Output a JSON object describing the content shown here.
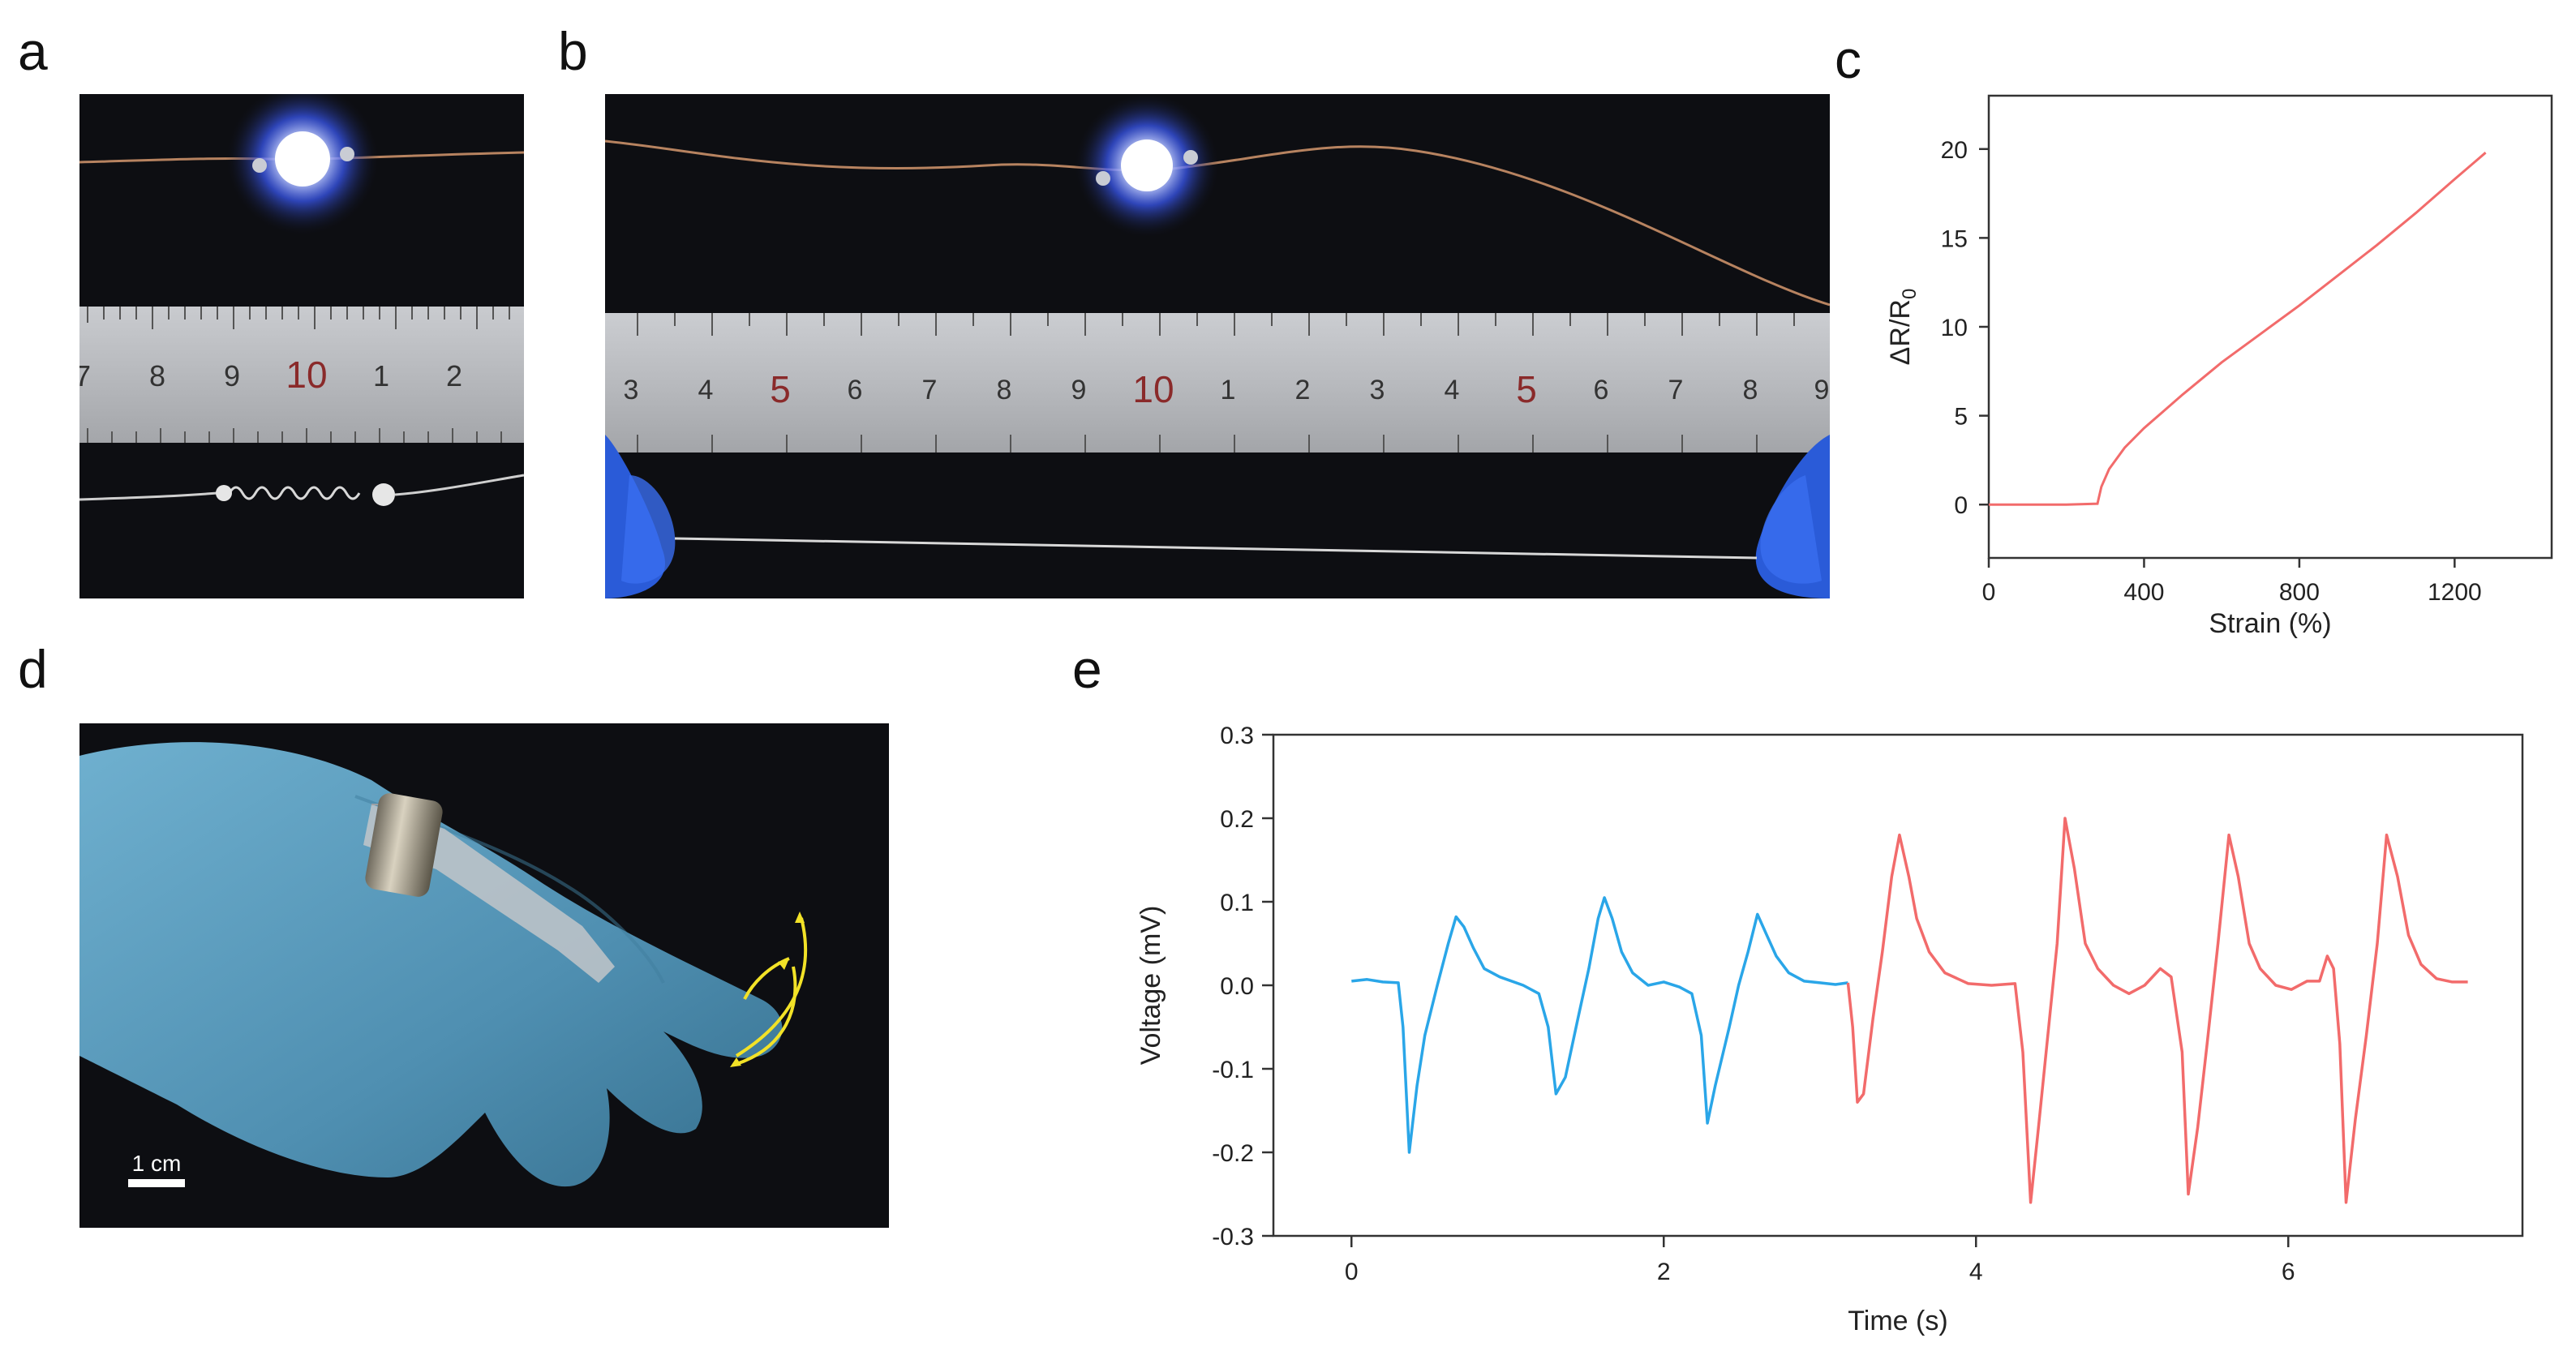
{
  "figure": {
    "panel_labels": {
      "a": "a",
      "b": "b",
      "c": "c",
      "d": "d",
      "e": "e"
    }
  },
  "photos": {
    "a": {
      "ruler_marks": [
        "7",
        "8",
        "9",
        "10",
        "1",
        "2"
      ]
    },
    "b": {
      "ruler_marks": [
        "3",
        "4",
        "5",
        "6",
        "7",
        "8",
        "9",
        "10",
        "1",
        "2",
        "3",
        "4",
        "5",
        "6",
        "7",
        "8",
        "9"
      ]
    },
    "d": {
      "scale_bar_label": "1 cm"
    }
  },
  "colors": {
    "series_red": "#f26b6b",
    "series_blue": "#2aa6e8",
    "led_blue": "#3c5cff",
    "glove": "#5e9fbf",
    "arrow_yellow": "#f2e227"
  },
  "chart_data": [
    {
      "panel": "c",
      "type": "line",
      "title": "",
      "xlabel": "Strain (%)",
      "ylabel": "ΔR/R",
      "ylabel_subscript": "0",
      "xlim": [
        0,
        1450
      ],
      "ylim": [
        -3,
        23
      ],
      "xticks": [
        0,
        400,
        800,
        1200
      ],
      "yticks": [
        0,
        5,
        10,
        15,
        20
      ],
      "grid": false,
      "series": [
        {
          "color": "#f26b6b",
          "points": [
            [
              0,
              0
            ],
            [
              100,
              0
            ],
            [
              200,
              0
            ],
            [
              280,
              0.05
            ],
            [
              290,
              1.0
            ],
            [
              310,
              2.0
            ],
            [
              350,
              3.2
            ],
            [
              400,
              4.3
            ],
            [
              500,
              6.2
            ],
            [
              600,
              8.0
            ],
            [
              700,
              9.6
            ],
            [
              800,
              11.2
            ],
            [
              900,
              12.9
            ],
            [
              1000,
              14.6
            ],
            [
              1100,
              16.4
            ],
            [
              1200,
              18.3
            ],
            [
              1280,
              19.8
            ]
          ]
        }
      ]
    },
    {
      "panel": "e",
      "type": "line",
      "title": "",
      "xlabel": "Time (s)",
      "ylabel": "Voltage (mV)",
      "xlim": [
        -0.5,
        7.5
      ],
      "ylim": [
        -0.3,
        0.3
      ],
      "xticks": [
        0,
        2,
        4,
        6
      ],
      "yticks": [
        -0.3,
        -0.2,
        -0.1,
        0.0,
        0.1,
        0.2,
        0.3
      ],
      "ytick_labels": [
        "-0.3",
        "-0.2",
        "-0.1",
        "0.0",
        "0.1",
        "0.2",
        "0.3"
      ],
      "grid": false,
      "series": [
        {
          "color": "#2aa6e8",
          "points": [
            [
              0,
              0.005
            ],
            [
              0.1,
              0.007
            ],
            [
              0.2,
              0.004
            ],
            [
              0.3,
              0.003
            ],
            [
              0.33,
              -0.05
            ],
            [
              0.37,
              -0.2
            ],
            [
              0.42,
              -0.12
            ],
            [
              0.47,
              -0.06
            ],
            [
              0.55,
              0.0
            ],
            [
              0.62,
              0.05
            ],
            [
              0.67,
              0.082
            ],
            [
              0.72,
              0.07
            ],
            [
              0.78,
              0.045
            ],
            [
              0.85,
              0.02
            ],
            [
              0.95,
              0.01
            ],
            [
              1.1,
              0.0
            ],
            [
              1.2,
              -0.01
            ],
            [
              1.26,
              -0.05
            ],
            [
              1.31,
              -0.13
            ],
            [
              1.37,
              -0.11
            ],
            [
              1.45,
              -0.04
            ],
            [
              1.52,
              0.02
            ],
            [
              1.58,
              0.08
            ],
            [
              1.62,
              0.105
            ],
            [
              1.67,
              0.08
            ],
            [
              1.73,
              0.04
            ],
            [
              1.8,
              0.015
            ],
            [
              1.9,
              0.0
            ],
            [
              2.0,
              0.004
            ],
            [
              2.1,
              -0.002
            ],
            [
              2.18,
              -0.01
            ],
            [
              2.24,
              -0.06
            ],
            [
              2.28,
              -0.165
            ],
            [
              2.33,
              -0.12
            ],
            [
              2.42,
              -0.05
            ],
            [
              2.48,
              0.0
            ],
            [
              2.54,
              0.04
            ],
            [
              2.6,
              0.085
            ],
            [
              2.66,
              0.06
            ],
            [
              2.72,
              0.035
            ],
            [
              2.8,
              0.015
            ],
            [
              2.9,
              0.005
            ],
            [
              3.0,
              0.003
            ],
            [
              3.1,
              0.001
            ],
            [
              3.18,
              0.003
            ]
          ]
        },
        {
          "color": "#f26b6b",
          "points": [
            [
              3.18,
              0.003
            ],
            [
              3.21,
              -0.05
            ],
            [
              3.24,
              -0.14
            ],
            [
              3.28,
              -0.13
            ],
            [
              3.34,
              -0.04
            ],
            [
              3.4,
              0.04
            ],
            [
              3.46,
              0.13
            ],
            [
              3.51,
              0.18
            ],
            [
              3.57,
              0.13
            ],
            [
              3.62,
              0.08
            ],
            [
              3.7,
              0.04
            ],
            [
              3.8,
              0.015
            ],
            [
              3.95,
              0.002
            ],
            [
              4.1,
              0.0
            ],
            [
              4.25,
              0.002
            ],
            [
              4.3,
              -0.08
            ],
            [
              4.35,
              -0.26
            ],
            [
              4.4,
              -0.17
            ],
            [
              4.46,
              -0.06
            ],
            [
              4.52,
              0.05
            ],
            [
              4.57,
              0.2
            ],
            [
              4.63,
              0.14
            ],
            [
              4.7,
              0.05
            ],
            [
              4.78,
              0.02
            ],
            [
              4.88,
              0.0
            ],
            [
              4.98,
              -0.01
            ],
            [
              5.08,
              0.0
            ],
            [
              5.18,
              0.02
            ],
            [
              5.25,
              0.01
            ],
            [
              5.32,
              -0.08
            ],
            [
              5.36,
              -0.25
            ],
            [
              5.42,
              -0.17
            ],
            [
              5.48,
              -0.07
            ],
            [
              5.55,
              0.05
            ],
            [
              5.62,
              0.18
            ],
            [
              5.68,
              0.13
            ],
            [
              5.75,
              0.05
            ],
            [
              5.82,
              0.02
            ],
            [
              5.92,
              0.0
            ],
            [
              6.02,
              -0.005
            ],
            [
              6.12,
              0.005
            ],
            [
              6.2,
              0.005
            ],
            [
              6.25,
              0.035
            ],
            [
              6.29,
              0.02
            ],
            [
              6.33,
              -0.07
            ],
            [
              6.37,
              -0.26
            ],
            [
              6.43,
              -0.16
            ],
            [
              6.5,
              -0.06
            ],
            [
              6.57,
              0.05
            ],
            [
              6.63,
              0.18
            ],
            [
              6.7,
              0.13
            ],
            [
              6.77,
              0.06
            ],
            [
              6.85,
              0.025
            ],
            [
              6.95,
              0.008
            ],
            [
              7.05,
              0.004
            ],
            [
              7.15,
              0.004
            ]
          ]
        }
      ]
    }
  ]
}
